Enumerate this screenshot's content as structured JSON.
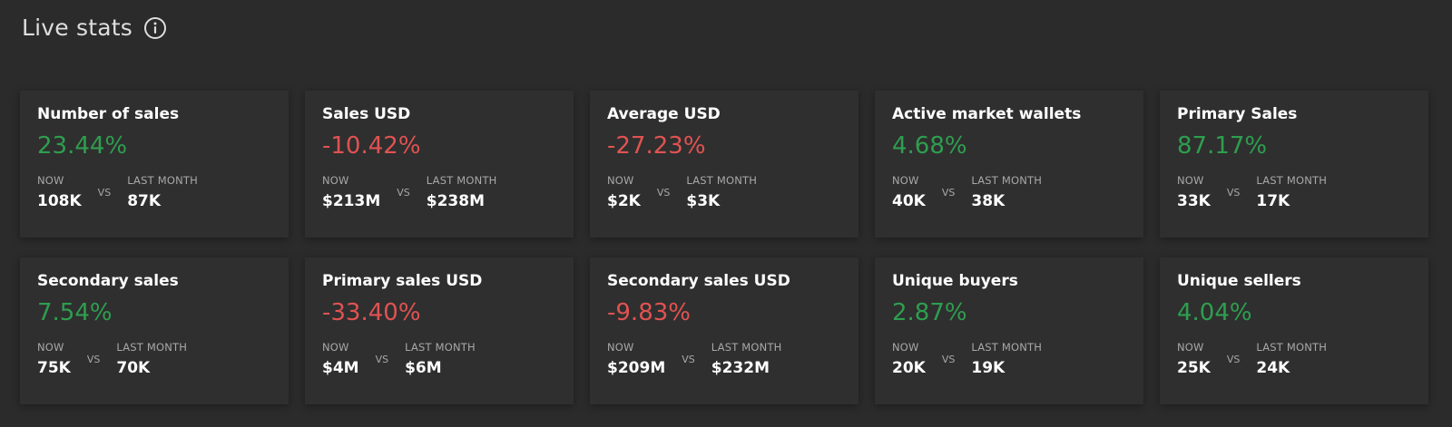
{
  "header": {
    "title": "Live stats",
    "info_icon": "info-icon"
  },
  "labels": {
    "now": "NOW",
    "vs": "VS",
    "last_month": "LAST MONTH"
  },
  "colors": {
    "positive": "#2e9e4f",
    "negative": "#e15252",
    "background": "#2b2b2b",
    "card": "#2f2f2f"
  },
  "cards": [
    {
      "label": "Number of sales",
      "pct": "23.44%",
      "trend": "pos",
      "now": "108K",
      "last_month": "87K"
    },
    {
      "label": "Sales USD",
      "pct": "-10.42%",
      "trend": "neg",
      "now": "$213M",
      "last_month": "$238M"
    },
    {
      "label": "Average USD",
      "pct": "-27.23%",
      "trend": "neg",
      "now": "$2K",
      "last_month": "$3K"
    },
    {
      "label": "Active market wallets",
      "pct": "4.68%",
      "trend": "pos",
      "now": "40K",
      "last_month": "38K"
    },
    {
      "label": "Primary Sales",
      "pct": "87.17%",
      "trend": "pos",
      "now": "33K",
      "last_month": "17K"
    },
    {
      "label": "Secondary sales",
      "pct": "7.54%",
      "trend": "pos",
      "now": "75K",
      "last_month": "70K"
    },
    {
      "label": "Primary sales USD",
      "pct": "-33.40%",
      "trend": "neg",
      "now": "$4M",
      "last_month": "$6M"
    },
    {
      "label": "Secondary sales USD",
      "pct": "-9.83%",
      "trend": "neg",
      "now": "$209M",
      "last_month": "$232M"
    },
    {
      "label": "Unique buyers",
      "pct": "2.87%",
      "trend": "pos",
      "now": "20K",
      "last_month": "19K"
    },
    {
      "label": "Unique sellers",
      "pct": "4.04%",
      "trend": "pos",
      "now": "25K",
      "last_month": "24K"
    }
  ]
}
